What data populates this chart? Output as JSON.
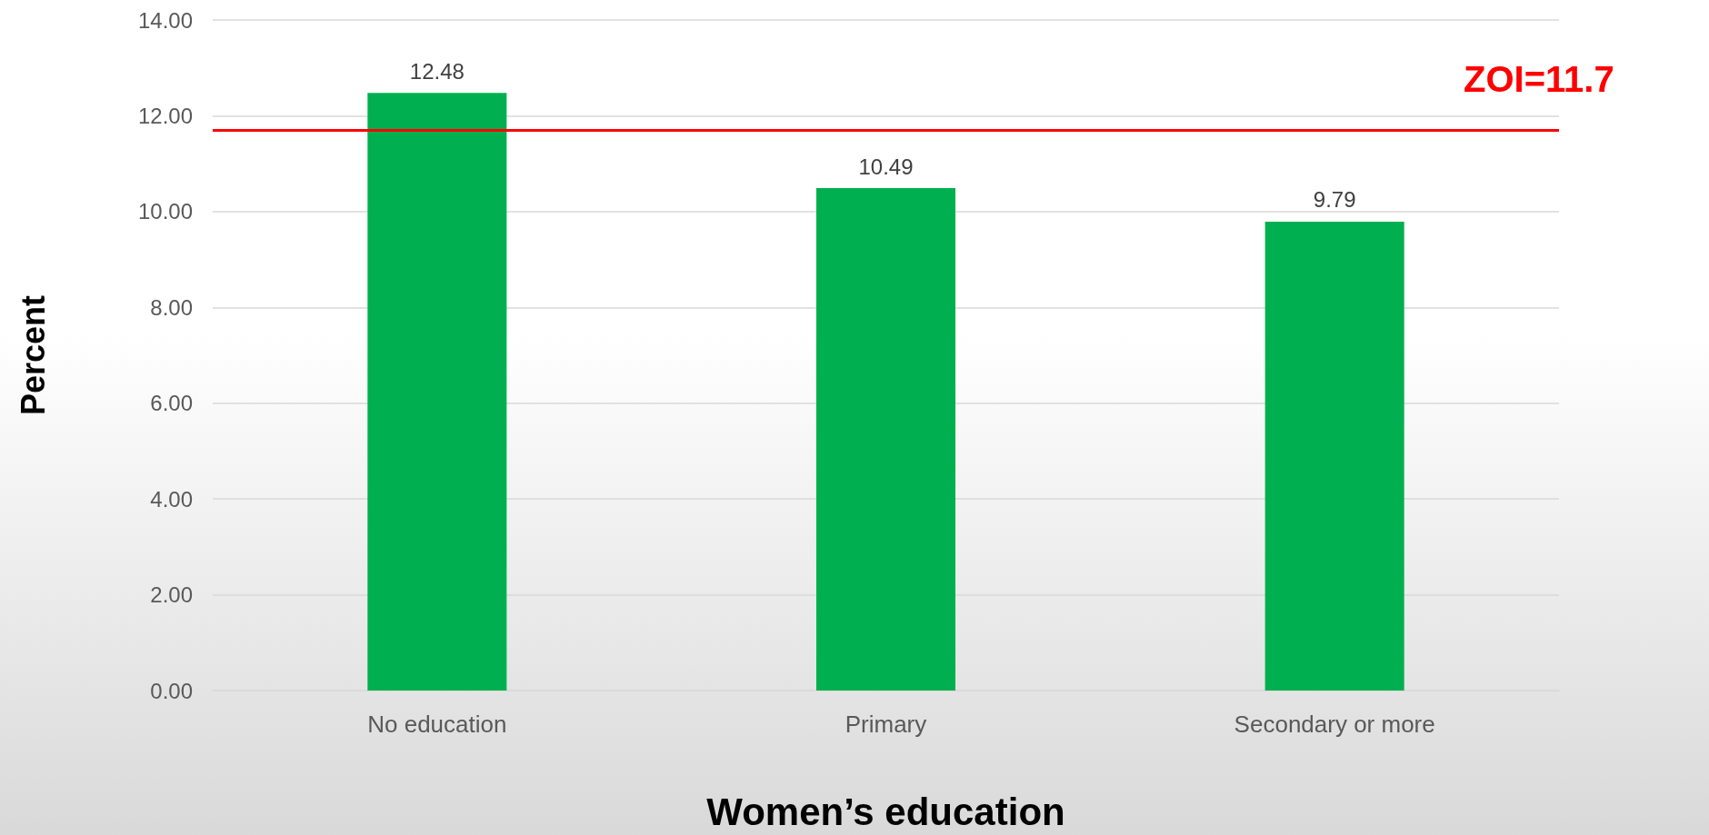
{
  "chart_data": {
    "type": "bar",
    "xlabel": "Women’s education",
    "ylabel": "Percent",
    "categories": [
      "No education",
      "Primary",
      "Secondary or more"
    ],
    "values": [
      12.48,
      10.49,
      9.79
    ],
    "color": "#00b050",
    "ylim": [
      0,
      14
    ],
    "yticks": [
      {
        "value": 0,
        "label": "0.00"
      },
      {
        "value": 2,
        "label": "2.00"
      },
      {
        "value": 4,
        "label": "4.00"
      },
      {
        "value": 6,
        "label": "6.00"
      },
      {
        "value": 8,
        "label": "8.00"
      },
      {
        "value": 10,
        "label": "10.00"
      },
      {
        "value": 12,
        "label": "12.00"
      },
      {
        "value": 14,
        "label": "14.00"
      }
    ],
    "ref_lines": [
      {
        "axis": "y",
        "value": 11.7,
        "label": "ZOI=11.7",
        "color": "#ff0000"
      }
    ],
    "data_labels": true,
    "grid": "y"
  }
}
